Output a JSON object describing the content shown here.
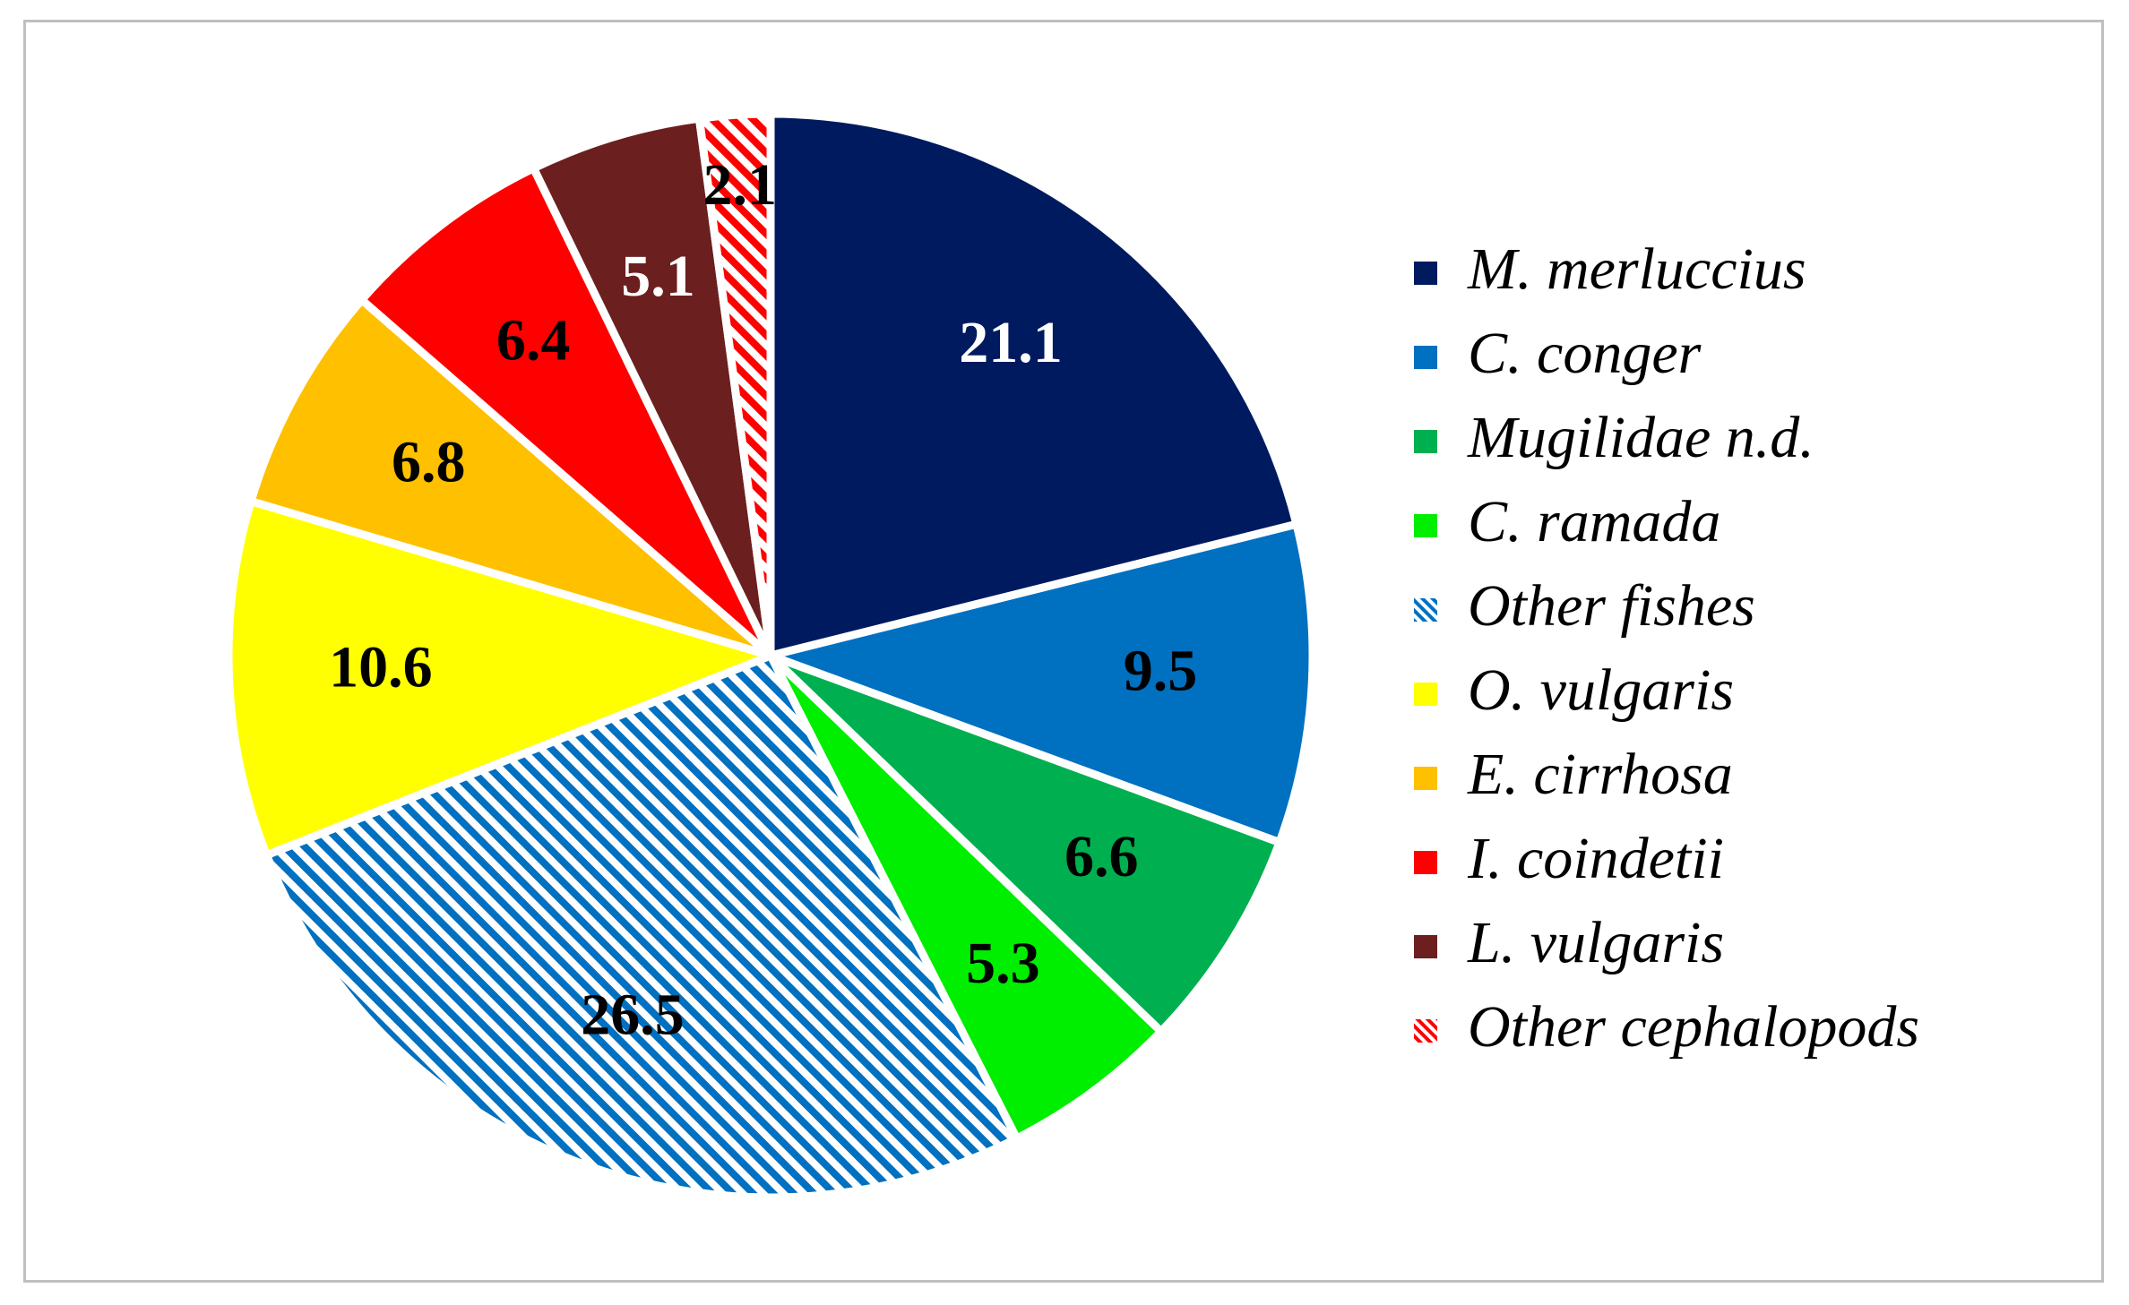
{
  "chart_data": {
    "type": "pie",
    "title": "",
    "start_angle_deg": 0,
    "direction": "clockwise",
    "legend_position": "right",
    "slices": [
      {
        "label": "M. merluccius",
        "value": 21.1,
        "color": "#001A5F",
        "label_color": "#ffffff",
        "pattern": "solid"
      },
      {
        "label": "C. conger",
        "value": 9.5,
        "color": "#0070C0",
        "label_color": "#000000",
        "pattern": "solid"
      },
      {
        "label": "Mugilidae n.d.",
        "value": 6.6,
        "color": "#00B050",
        "label_color": "#000000",
        "pattern": "solid"
      },
      {
        "label": "C. ramada",
        "value": 5.3,
        "color": "#00EE00",
        "label_color": "#000000",
        "pattern": "solid"
      },
      {
        "label": "Other fishes",
        "value": 26.5,
        "color": "#0070C0",
        "label_color": "#000000",
        "pattern": "diagonal-stripes"
      },
      {
        "label": "O. vulgaris",
        "value": 10.6,
        "color": "#FFFF00",
        "label_color": "#000000",
        "pattern": "solid"
      },
      {
        "label": "E. cirrhosa",
        "value": 6.8,
        "color": "#FFC000",
        "label_color": "#000000",
        "pattern": "solid"
      },
      {
        "label": "I. coindetii",
        "value": 6.4,
        "color": "#FF0000",
        "label_color": "#000000",
        "pattern": "solid"
      },
      {
        "label": "L. vulgaris",
        "value": 5.1,
        "color": "#6B1F1F",
        "label_color": "#ffffff",
        "pattern": "solid"
      },
      {
        "label": "Other cephalopods",
        "value": 2.1,
        "color": "#FF0000",
        "label_color": "#000000",
        "pattern": "diagonal-stripes"
      }
    ]
  }
}
